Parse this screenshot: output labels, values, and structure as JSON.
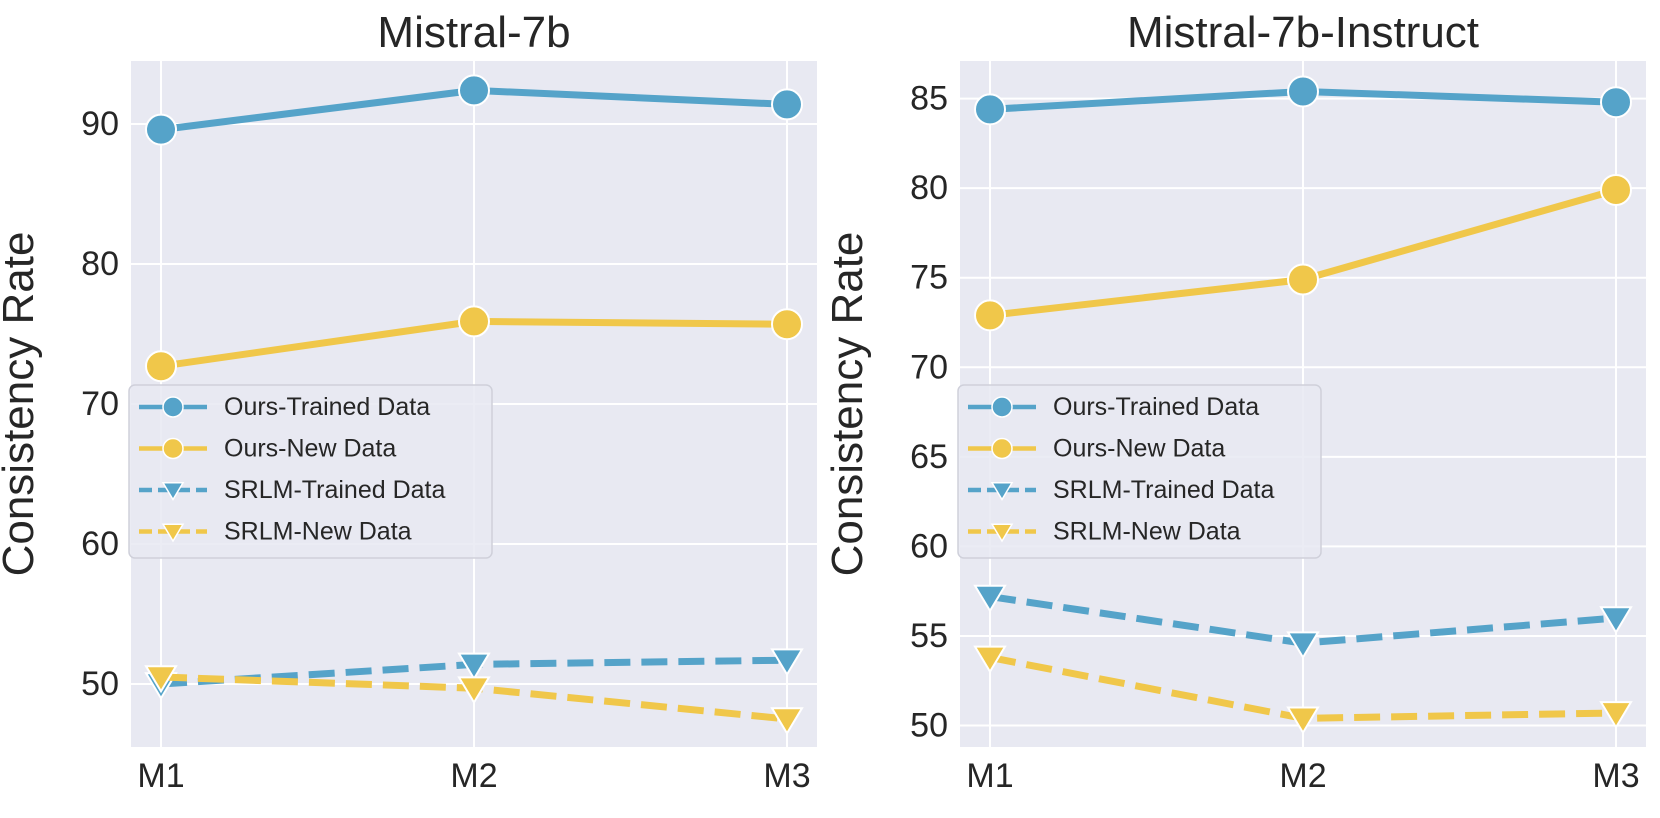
{
  "colors": {
    "trained": "#55a3c9",
    "new": "#f0c74a",
    "plot_bg": "#e8e9f2",
    "grid": "#ffffff",
    "text": "#262626"
  },
  "chart_data": [
    {
      "type": "line",
      "title": "Mistral-7b",
      "xlabel": "",
      "ylabel": "Consistency Rate",
      "categories": [
        "M1",
        "M2",
        "M3"
      ],
      "ylim": [
        45.5,
        94.5
      ],
      "yticks": [
        50,
        60,
        70,
        80,
        90
      ],
      "grid": true,
      "legend_position": "center-left",
      "series": [
        {
          "name": "Ours-Trained Data",
          "values": [
            89.6,
            92.4,
            91.4
          ],
          "color": "trained",
          "marker": "circle",
          "dashed": false
        },
        {
          "name": "Ours-New Data",
          "values": [
            72.7,
            75.9,
            75.7
          ],
          "color": "new",
          "marker": "circle",
          "dashed": false
        },
        {
          "name": "SRLM-Trained Data",
          "values": [
            50.0,
            51.4,
            51.7
          ],
          "color": "trained",
          "marker": "triangle",
          "dashed": true
        },
        {
          "name": "SRLM-New Data",
          "values": [
            50.5,
            49.7,
            47.5
          ],
          "color": "new",
          "marker": "triangle",
          "dashed": true
        }
      ]
    },
    {
      "type": "line",
      "title": "Mistral-7b-Instruct",
      "xlabel": "",
      "ylabel": "Consistency Rate",
      "categories": [
        "M1",
        "M2",
        "M3"
      ],
      "ylim": [
        48.8,
        87.1
      ],
      "yticks": [
        50,
        55,
        60,
        65,
        70,
        75,
        80,
        85
      ],
      "grid": true,
      "legend_position": "center-left",
      "series": [
        {
          "name": "Ours-Trained Data",
          "values": [
            84.4,
            85.4,
            84.8
          ],
          "color": "trained",
          "marker": "circle",
          "dashed": false
        },
        {
          "name": "Ours-New Data",
          "values": [
            72.9,
            74.9,
            79.9
          ],
          "color": "new",
          "marker": "circle",
          "dashed": false
        },
        {
          "name": "SRLM-Trained Data",
          "values": [
            57.2,
            54.6,
            56.0
          ],
          "color": "trained",
          "marker": "triangle",
          "dashed": true
        },
        {
          "name": "SRLM-New Data",
          "values": [
            53.8,
            50.4,
            50.7
          ],
          "color": "new",
          "marker": "triangle",
          "dashed": true
        }
      ]
    }
  ]
}
